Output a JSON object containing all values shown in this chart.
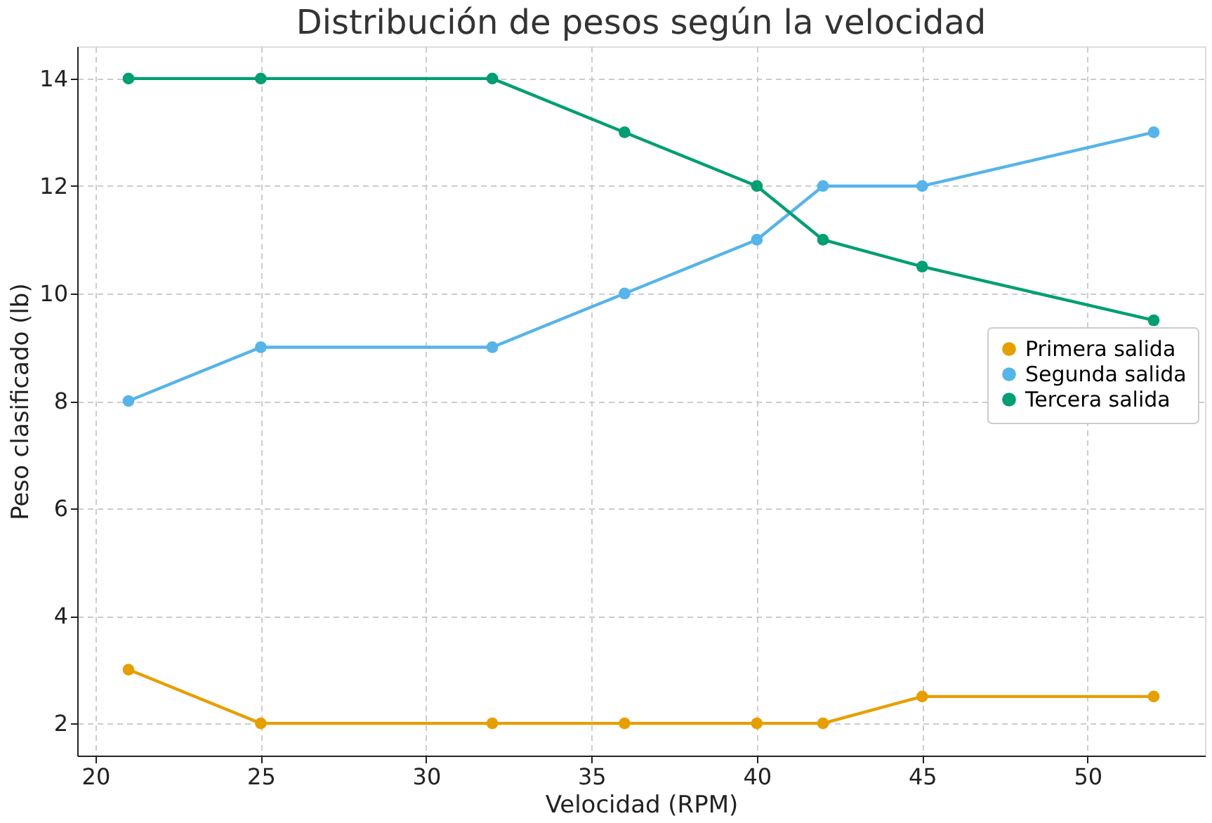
{
  "chart_data": {
    "type": "line",
    "title": "Distribución de pesos según la velocidad",
    "xlabel": "Velocidad (RPM)",
    "ylabel": "Peso clasificado (lb)",
    "x": [
      21,
      25,
      32,
      36,
      40,
      42,
      45,
      52
    ],
    "series": [
      {
        "name": "Primera salida",
        "color": "#e69f00",
        "values": [
          3,
          2,
          2,
          2,
          2,
          2,
          2.5,
          2.5
        ]
      },
      {
        "name": "Segunda salida",
        "color": "#56b4e9",
        "values": [
          8,
          9,
          9,
          10,
          11,
          12,
          12,
          13
        ]
      },
      {
        "name": "Tercera salida",
        "color": "#009e73",
        "values": [
          14,
          14,
          14,
          13,
          12,
          11,
          10.5,
          9.5
        ]
      }
    ],
    "xlim": [
      19.45,
      53.55
    ],
    "xticks": [
      20,
      25,
      30,
      35,
      40,
      45,
      50
    ],
    "ylim": [
      1.4,
      14.6
    ],
    "yticks": [
      2,
      4,
      6,
      8,
      10,
      12,
      14
    ],
    "grid": true,
    "legend": "right",
    "marker": "circle",
    "line_style": "solid"
  }
}
